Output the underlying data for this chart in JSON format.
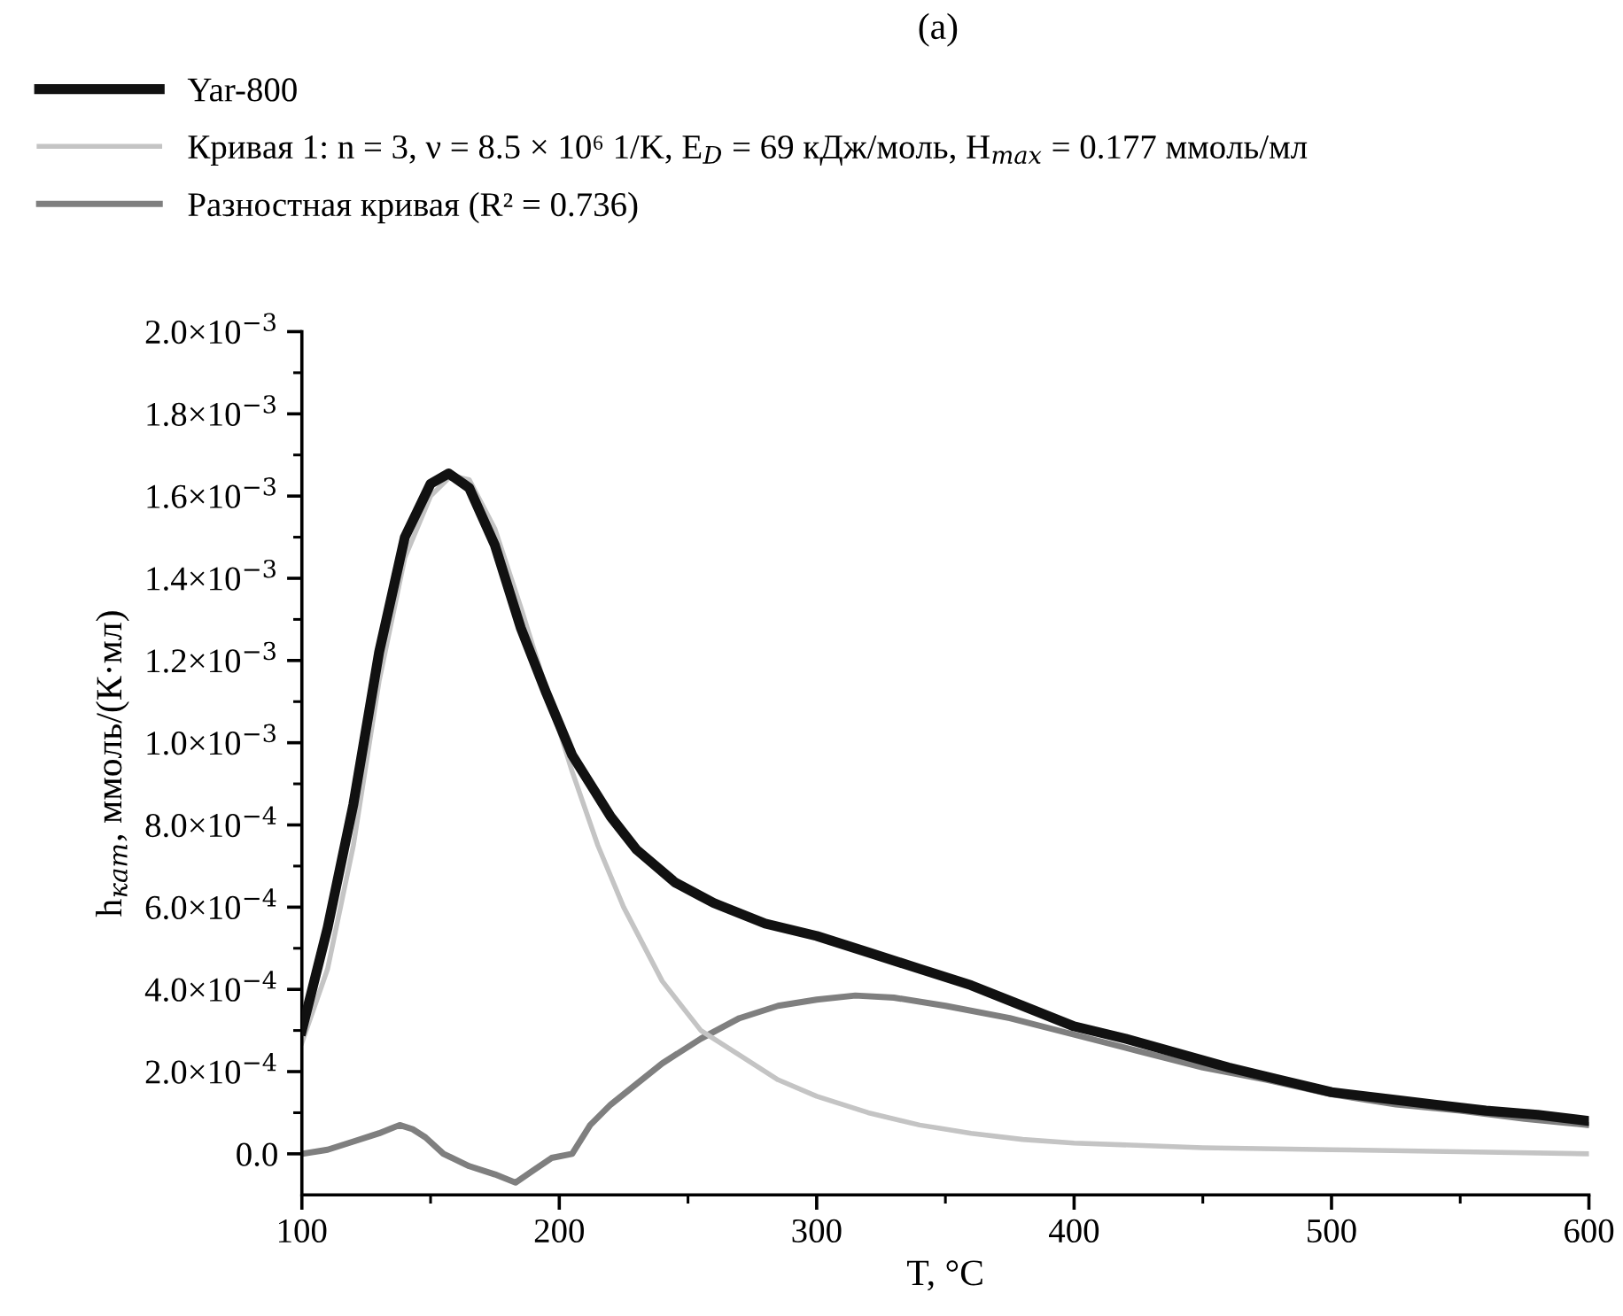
{
  "chart_data": {
    "type": "line",
    "title": "(a)",
    "xlabel": "T, °C",
    "ylabel": "h$_{кат}$, ммоль/(К·мл)",
    "xlim": [
      100,
      600
    ],
    "xticks": [
      100,
      200,
      300,
      400,
      500,
      600
    ],
    "ylim": [
      -0.0001,
      0.002
    ],
    "yticks": [
      {
        "value": 0,
        "label": "0.0"
      },
      {
        "value": 0.0002,
        "label": "2.0×10$^{−4}$"
      },
      {
        "value": 0.0004,
        "label": "4.0×10$^{−4}$"
      },
      {
        "value": 0.0006,
        "label": "6.0×10$^{−4}$"
      },
      {
        "value": 0.0008,
        "label": "8.0×10$^{−4}$"
      },
      {
        "value": 0.001,
        "label": "1.0×10$^{−3}$"
      },
      {
        "value": 0.0012,
        "label": "1.2×10$^{−3}$"
      },
      {
        "value": 0.0014,
        "label": "1.4×10$^{−3}$"
      },
      {
        "value": 0.0016,
        "label": "1.6×10$^{−3}$"
      },
      {
        "value": 0.0018,
        "label": "1.8×10$^{−3}$"
      },
      {
        "value": 0.002,
        "label": "2.0×10$^{−3}$"
      }
    ],
    "grid": false,
    "legend": "top left",
    "marker": "none",
    "line_style": "solid",
    "series": [
      {
        "name": "Yar-800",
        "color": "#111111",
        "x": [
          100,
          110,
          120,
          130,
          140,
          150,
          157,
          165,
          175,
          185,
          195,
          205,
          212,
          220,
          230,
          245,
          260,
          280,
          300,
          320,
          340,
          360,
          380,
          400,
          420,
          440,
          460,
          480,
          500,
          520,
          540,
          560,
          580,
          600
        ],
        "values": [
          0.0003,
          0.00055,
          0.00085,
          0.00122,
          0.0015,
          0.00163,
          0.001655,
          0.00162,
          0.00148,
          0.00128,
          0.00112,
          0.00097,
          0.0009,
          0.00082,
          0.00074,
          0.00066,
          0.00061,
          0.00056,
          0.00053,
          0.00049,
          0.00045,
          0.00041,
          0.00036,
          0.00031,
          0.00028,
          0.000245,
          0.00021,
          0.00018,
          0.00015,
          0.000135,
          0.00012,
          0.000105,
          9.5e-05,
          8e-05
        ]
      },
      {
        "name": "Кривая 1: n = 3, ν = 8.5 × 10⁶ 1/K, E$_{D}$ = 69 кДж/моль, H$_{max}$ = 0.177 ммоль/мл",
        "color": "#c4c4c4",
        "x": [
          100,
          110,
          120,
          130,
          140,
          150,
          158,
          165,
          175,
          185,
          195,
          205,
          215,
          225,
          240,
          255,
          270,
          285,
          300,
          320,
          340,
          360,
          380,
          400,
          450,
          500,
          550,
          600
        ],
        "values": [
          0.00027,
          0.00045,
          0.00075,
          0.00115,
          0.00145,
          0.0016,
          0.00165,
          0.00164,
          0.00152,
          0.00133,
          0.00113,
          0.00093,
          0.00075,
          0.0006,
          0.00042,
          0.0003,
          0.00024,
          0.00018,
          0.00014,
          0.0001,
          7e-05,
          5e-05,
          3.5e-05,
          2.6e-05,
          1.5e-05,
          1e-05,
          5e-06,
          0.0
        ]
      },
      {
        "name": "Разностная кривая (R² = 0.736)",
        "color": "#7f7f7f",
        "x": [
          100,
          110,
          120,
          130,
          138,
          143,
          148,
          155,
          165,
          175,
          183,
          190,
          197,
          205,
          212,
          220,
          230,
          240,
          255,
          270,
          285,
          300,
          315,
          330,
          350,
          375,
          400,
          425,
          450,
          475,
          500,
          525,
          550,
          575,
          600
        ],
        "values": [
          0.0,
          1e-05,
          3e-05,
          5e-05,
          7e-05,
          6e-05,
          4e-05,
          0.0,
          -3e-05,
          -5e-05,
          -7e-05,
          -4e-05,
          -1e-05,
          0.0,
          7e-05,
          0.00012,
          0.00017,
          0.00022,
          0.00028,
          0.00033,
          0.00036,
          0.000375,
          0.000385,
          0.00038,
          0.00036,
          0.00033,
          0.00029,
          0.00025,
          0.00021,
          0.00018,
          0.000145,
          0.00012,
          0.000105,
          8.5e-05,
          7e-05
        ]
      }
    ]
  }
}
